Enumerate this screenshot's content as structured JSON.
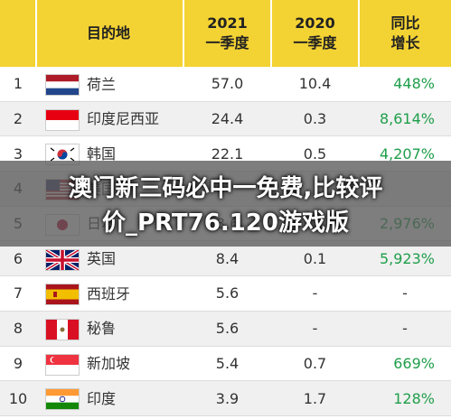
{
  "header": {
    "col1": "",
    "col2": "目的地",
    "col3_line1": "2021",
    "col3_line2": "一季度",
    "col4_line1": "2020",
    "col4_line2": "一季度",
    "col5_line1": "同比",
    "col5_line2": "增长"
  },
  "rows": [
    {
      "rank": "1",
      "name": "荷兰",
      "flag": "netherlands-flag",
      "v2021": "57.0",
      "v2020": "10.4",
      "growth": "448%"
    },
    {
      "rank": "2",
      "name": "印度尼西亚",
      "flag": "indonesia-flag",
      "v2021": "24.4",
      "v2020": "0.3",
      "growth": "8,614%"
    },
    {
      "rank": "3",
      "name": "韩国",
      "flag": "south-korea-flag",
      "v2021": "22.1",
      "v2020": "0.5",
      "growth": "4,207%"
    },
    {
      "rank": "4",
      "name": "美国",
      "flag": "usa-flag",
      "v2021": "",
      "v2020": "",
      "growth": ""
    },
    {
      "rank": "5",
      "name": "日本",
      "flag": "japan-flag",
      "v2021": "8.6",
      "v2020": "",
      "growth": "2,976%"
    },
    {
      "rank": "6",
      "name": "英国",
      "flag": "uk-flag",
      "v2021": "8.4",
      "v2020": "0.1",
      "growth": "5,923%"
    },
    {
      "rank": "7",
      "name": "西班牙",
      "flag": "spain-flag",
      "v2021": "5.6",
      "v2020": "-",
      "growth": "-"
    },
    {
      "rank": "8",
      "name": "秘鲁",
      "flag": "peru-flag",
      "v2021": "5.6",
      "v2020": "-",
      "growth": "-"
    },
    {
      "rank": "9",
      "name": "新加坡",
      "flag": "singapore-flag",
      "v2021": "5.4",
      "v2020": "0.7",
      "growth": "669%"
    },
    {
      "rank": "10",
      "name": "印度",
      "flag": "india-flag",
      "v2021": "3.9",
      "v2020": "1.7",
      "growth": "128%"
    }
  ],
  "overlay": {
    "line1": "澳门新三码必中一免费,比较评",
    "line2": "价_PRT76.120游戏版"
  },
  "colors": {
    "header_bg": "#f3d233",
    "growth_text": "#1f9e4a",
    "overlay_bg": "#5a5a5a"
  }
}
